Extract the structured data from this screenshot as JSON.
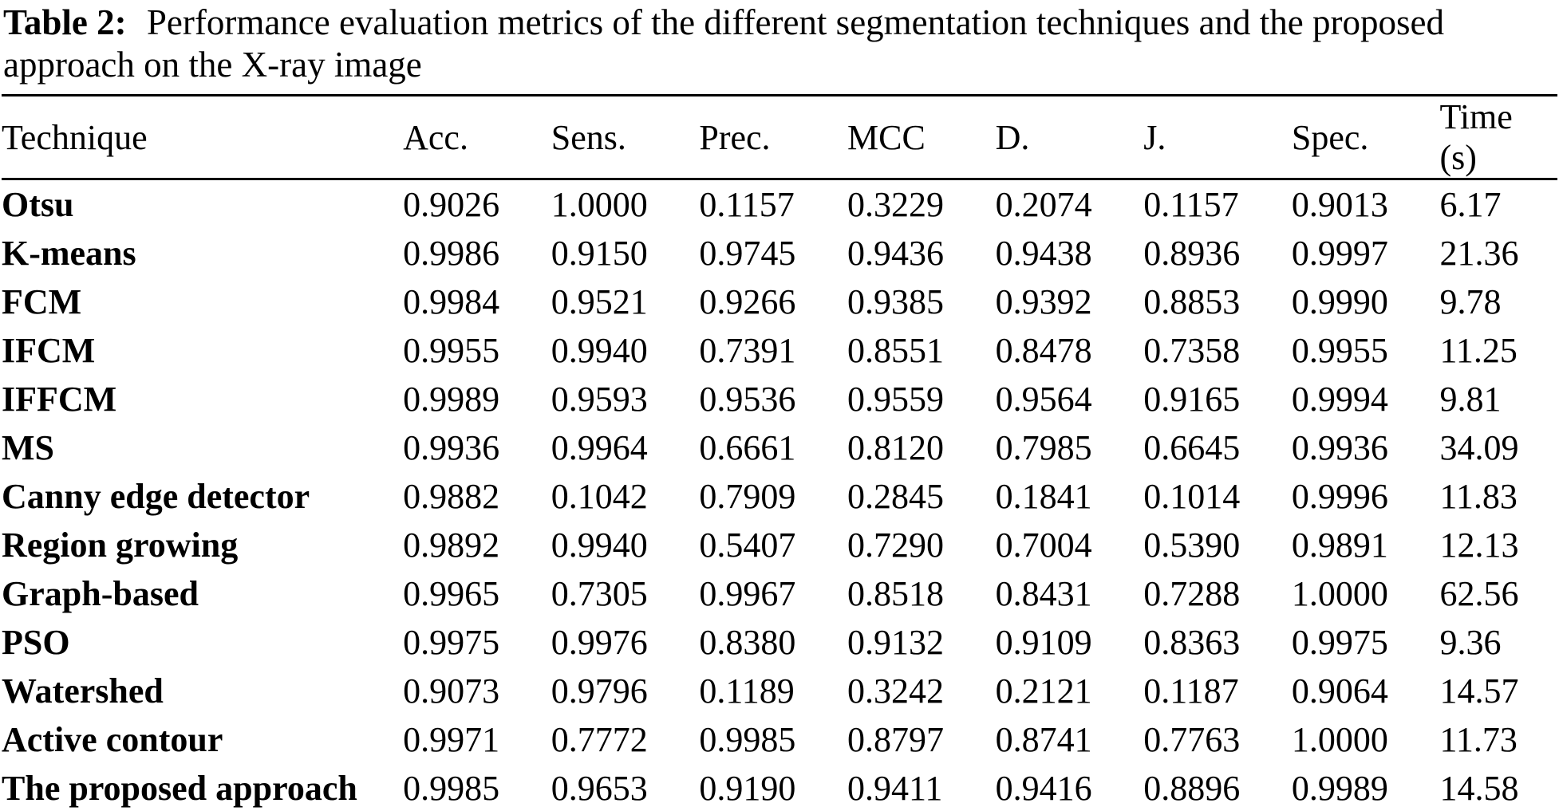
{
  "caption": {
    "label": "Table 2:",
    "text": "Performance evaluation metrics of the different segmentation techniques and the proposed approach on the X-ray image"
  },
  "chart_data": {
    "type": "table",
    "columns": [
      "Technique",
      "Acc.",
      "Sens.",
      "Prec.",
      "MCC",
      "D.",
      "J.",
      "Spec.",
      "Time (s)"
    ],
    "rows": [
      [
        "Otsu",
        "0.9026",
        "1.0000",
        "0.1157",
        "0.3229",
        "0.2074",
        "0.1157",
        "0.9013",
        "6.17"
      ],
      [
        "K-means",
        "0.9986",
        "0.9150",
        "0.9745",
        "0.9436",
        "0.9438",
        "0.8936",
        "0.9997",
        "21.36"
      ],
      [
        "FCM",
        "0.9984",
        "0.9521",
        "0.9266",
        "0.9385",
        "0.9392",
        "0.8853",
        "0.9990",
        "9.78"
      ],
      [
        "IFCM",
        "0.9955",
        "0.9940",
        "0.7391",
        "0.8551",
        "0.8478",
        "0.7358",
        "0.9955",
        "11.25"
      ],
      [
        "IFFCM",
        "0.9989",
        "0.9593",
        "0.9536",
        "0.9559",
        "0.9564",
        "0.9165",
        "0.9994",
        "9.81"
      ],
      [
        "MS",
        "0.9936",
        "0.9964",
        "0.6661",
        "0.8120",
        "0.7985",
        "0.6645",
        "0.9936",
        "34.09"
      ],
      [
        "Canny edge detector",
        "0.9882",
        "0.1042",
        "0.7909",
        "0.2845",
        "0.1841",
        "0.1014",
        "0.9996",
        "11.83"
      ],
      [
        "Region growing",
        "0.9892",
        "0.9940",
        "0.5407",
        "0.7290",
        "0.7004",
        "0.5390",
        "0.9891",
        "12.13"
      ],
      [
        "Graph-based",
        "0.9965",
        "0.7305",
        "0.9967",
        "0.8518",
        "0.8431",
        "0.7288",
        "1.0000",
        "62.56"
      ],
      [
        "PSO",
        "0.9975",
        "0.9976",
        "0.8380",
        "0.9132",
        "0.9109",
        "0.8363",
        "0.9975",
        "9.36"
      ],
      [
        "Watershed",
        "0.9073",
        "0.9796",
        "0.1189",
        "0.3242",
        "0.2121",
        "0.1187",
        "0.9064",
        "14.57"
      ],
      [
        "Active contour",
        "0.9971",
        "0.7772",
        "0.9985",
        "0.8797",
        "0.8741",
        "0.7763",
        "1.0000",
        "11.73"
      ],
      [
        "The proposed approach",
        "0.9985",
        "0.9653",
        "0.9190",
        "0.9411",
        "0.9416",
        "0.8896",
        "0.9989",
        "14.58"
      ]
    ]
  },
  "colors": {
    "text": "#000000",
    "background": "#ffffff",
    "rule": "#000000"
  }
}
